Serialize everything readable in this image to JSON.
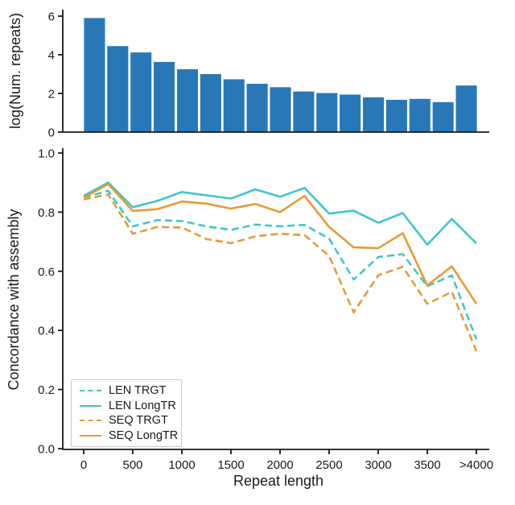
{
  "colors": {
    "bar_blue": "#2878b8",
    "cyan": "#41c6c8",
    "orange": "#e69b35",
    "axis": "#1a1a1a",
    "background": "#ffffff",
    "legend_border": "#c9c9c9"
  },
  "chart_data": [
    {
      "type": "bar",
      "title": "",
      "xlabel": "",
      "ylabel": "log(Num. repeats)",
      "ylim": [
        0,
        6.3
      ],
      "yticks": [
        0,
        2,
        4,
        6
      ],
      "ytick_labels": [
        "0",
        "2",
        "4",
        "6"
      ],
      "grid": false,
      "bar_color_key": "bar_blue",
      "categories": [
        "0",
        "250",
        "500",
        "750",
        "1000",
        "1250",
        "1500",
        "1750",
        "2000",
        "2250",
        "2500",
        "2750",
        "3000",
        "3250",
        "3500",
        "3750",
        ">4000"
      ],
      "values": [
        5.9,
        4.45,
        4.12,
        3.63,
        3.25,
        3.0,
        2.73,
        2.5,
        2.32,
        2.1,
        2.02,
        1.94,
        1.8,
        1.67,
        1.72,
        1.55,
        2.41
      ]
    },
    {
      "type": "line",
      "title": "",
      "xlabel": "Repeat length",
      "ylabel": "Concordance with assembly",
      "ylim": [
        0.0,
        1.0
      ],
      "yticks": [
        0.0,
        0.2,
        0.4,
        0.6,
        0.8,
        1.0
      ],
      "ytick_labels": [
        "0.0",
        "0.2",
        "0.4",
        "0.6",
        "0.8",
        "1.0"
      ],
      "xtick_values": [
        0,
        500,
        1000,
        1500,
        2000,
        2500,
        3000,
        3500,
        4000
      ],
      "xtick_labels": [
        "0",
        "500",
        "1000",
        "1500",
        "2000",
        "2500",
        "3000",
        "3500",
        ">4000"
      ],
      "xlim": [
        0,
        4000
      ],
      "grid": false,
      "legend_position": "lower left",
      "x": [
        0,
        250,
        500,
        750,
        1000,
        1250,
        1500,
        1750,
        2000,
        2250,
        2500,
        2750,
        3000,
        3250,
        3500,
        3750,
        4000
      ],
      "series": [
        {
          "name": "LEN TRGT",
          "color_key": "cyan",
          "dash": true,
          "values": [
            0.85,
            0.872,
            0.752,
            0.773,
            0.77,
            0.752,
            0.74,
            0.758,
            0.752,
            0.757,
            0.71,
            0.572,
            0.648,
            0.658,
            0.549,
            0.586,
            0.37
          ]
        },
        {
          "name": "LEN LongTR",
          "color_key": "cyan",
          "dash": false,
          "values": [
            0.855,
            0.9,
            0.817,
            0.838,
            0.868,
            0.857,
            0.846,
            0.877,
            0.852,
            0.882,
            0.795,
            0.805,
            0.764,
            0.797,
            0.69,
            0.777,
            0.694
          ]
        },
        {
          "name": "SEQ TRGT",
          "color_key": "orange",
          "dash": true,
          "values": [
            0.843,
            0.86,
            0.727,
            0.75,
            0.748,
            0.709,
            0.695,
            0.718,
            0.727,
            0.722,
            0.652,
            0.461,
            0.586,
            0.615,
            0.49,
            0.53,
            0.33
          ]
        },
        {
          "name": "SEQ LongTR",
          "color_key": "orange",
          "dash": false,
          "values": [
            0.849,
            0.895,
            0.804,
            0.81,
            0.836,
            0.829,
            0.812,
            0.828,
            0.8,
            0.855,
            0.75,
            0.681,
            0.678,
            0.729,
            0.552,
            0.617,
            0.49
          ]
        }
      ]
    }
  ]
}
